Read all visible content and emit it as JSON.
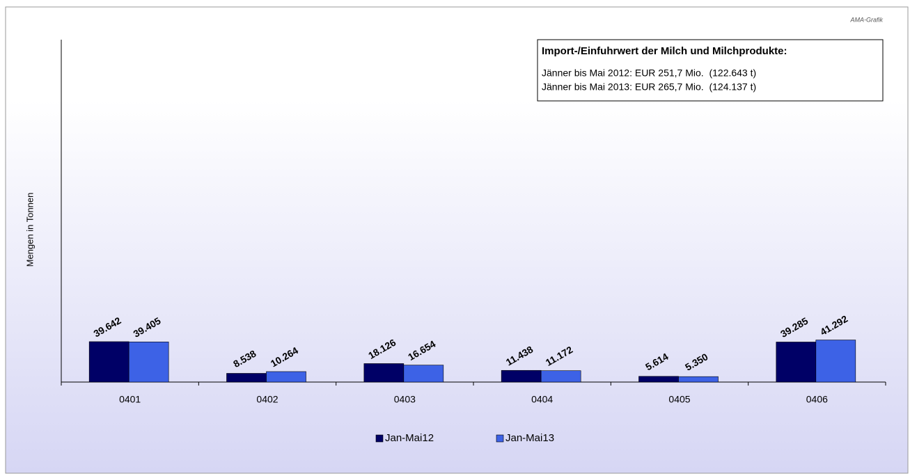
{
  "chart_data": {
    "type": "bar",
    "credit": "AMA-Grafik",
    "y_label": "Mengen in Tonnen",
    "annotation": {
      "title": "Import-/Einfuhrwert der Milch und Milchprodukte:",
      "lines": [
        "Jänner bis Mai 2012: EUR 251,7 Mio.  (122.643 t)",
        "Jänner bis Mai 2013: EUR 265,7 Mio.  (124.137 t)"
      ]
    },
    "categories": [
      "0401",
      "0402",
      "0403",
      "0404",
      "0405",
      "0406"
    ],
    "series": [
      {
        "name": "Jan-Mai12",
        "color": "#000066",
        "values": [
          39642,
          8538,
          18126,
          11438,
          5614,
          39285
        ],
        "value_labels": [
          "39.642",
          "8.538",
          "18.126",
          "11.438",
          "5.614",
          "39.285"
        ]
      },
      {
        "name": "Jan-Mai13",
        "color": "#3d62e6",
        "values": [
          39405,
          10264,
          16654,
          11172,
          5350,
          41292
        ],
        "value_labels": [
          "39.405",
          "10.264",
          "16.654",
          "11.172",
          "5.350",
          "41.292"
        ]
      }
    ],
    "ylim": [
      0,
      336000
    ],
    "legend": "bottom"
  }
}
